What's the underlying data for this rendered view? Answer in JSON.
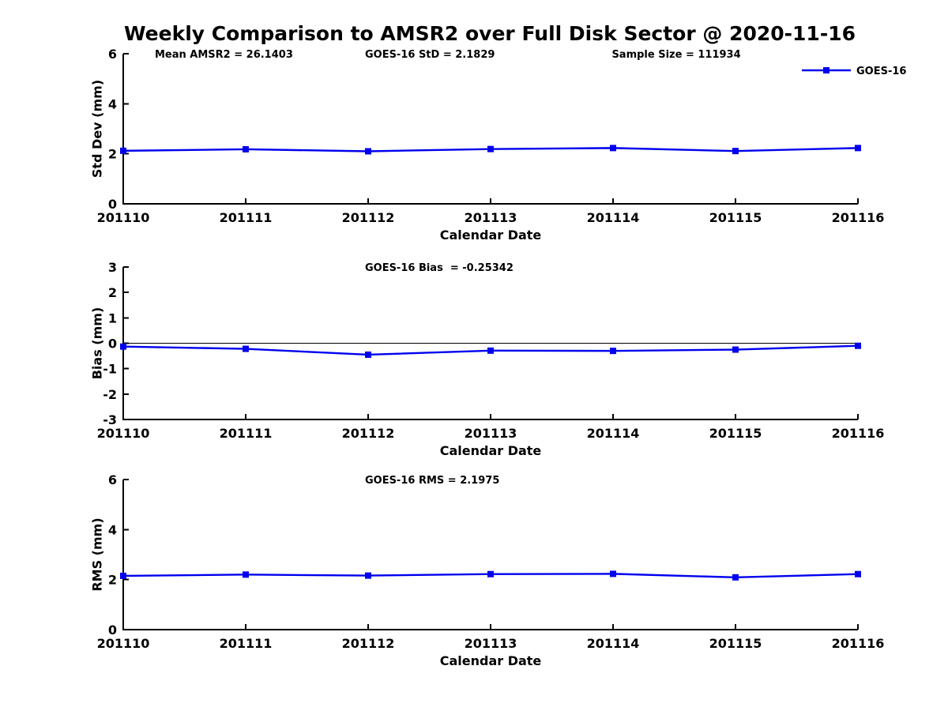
{
  "title": "Weekly Comparison to AMSR2 over Full Disk Sector @ 2020-11-16",
  "colors": {
    "series": "#0000EE",
    "axis": "#000000",
    "background": "#ffffff"
  },
  "legend": {
    "label": "GOES-16"
  },
  "chart_data": [
    {
      "type": "line",
      "name": "std-dev",
      "ylabel": "Std Dev (mm)",
      "xlabel": "Calendar Date",
      "ylim": [
        0,
        6
      ],
      "yticks": [
        0,
        2,
        4,
        6
      ],
      "categories": [
        "201110",
        "201111",
        "201112",
        "201113",
        "201114",
        "201115",
        "201116"
      ],
      "series": [
        {
          "name": "GOES-16",
          "values": [
            2.12,
            2.18,
            2.1,
            2.19,
            2.23,
            2.11,
            2.23
          ]
        }
      ],
      "annotations": [
        {
          "text": "Mean AMSR2 = 26.1403",
          "xfrac": 0.043
        },
        {
          "text": "GOES-16 StD = 2.1829",
          "xfrac": 0.329
        },
        {
          "text": "Sample Size = 111934",
          "xfrac": 0.665
        }
      ],
      "legend_visible": true,
      "zero_line": false,
      "grid": false
    },
    {
      "type": "line",
      "name": "bias",
      "ylabel": "Bias (mm)",
      "xlabel": "Calendar Date",
      "ylim": [
        -3,
        3
      ],
      "yticks": [
        -3,
        -2,
        -1,
        0,
        1,
        2,
        3
      ],
      "categories": [
        "201110",
        "201111",
        "201112",
        "201113",
        "201114",
        "201115",
        "201116"
      ],
      "series": [
        {
          "name": "GOES-16",
          "values": [
            -0.13,
            -0.22,
            -0.45,
            -0.29,
            -0.3,
            -0.25,
            -0.1
          ]
        }
      ],
      "annotations": [
        {
          "text": "GOES-16 Bias  = -0.25342",
          "xfrac": 0.329
        }
      ],
      "legend_visible": false,
      "zero_line": true,
      "grid": false
    },
    {
      "type": "line",
      "name": "rms",
      "ylabel": "RMS (mm)",
      "xlabel": "Calendar Date",
      "ylim": [
        0,
        6
      ],
      "yticks": [
        0,
        2,
        4,
        6
      ],
      "categories": [
        "201110",
        "201111",
        "201112",
        "201113",
        "201114",
        "201115",
        "201116"
      ],
      "series": [
        {
          "name": "GOES-16",
          "values": [
            2.15,
            2.2,
            2.16,
            2.22,
            2.23,
            2.09,
            2.22
          ]
        }
      ],
      "annotations": [
        {
          "text": "GOES-16 RMS = 2.1975",
          "xfrac": 0.329
        }
      ],
      "legend_visible": false,
      "zero_line": false,
      "grid": false
    }
  ]
}
